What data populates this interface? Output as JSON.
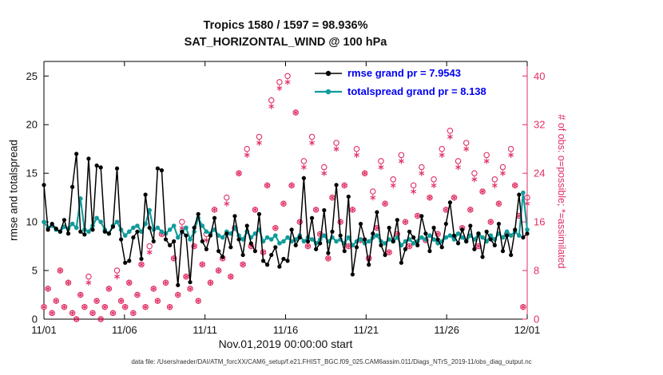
{
  "footer": {
    "data_file_note": "data file: /Users/raeder/DAI/ATM_forcXX/CAM6_setup/f.e21.FHIST_BGC.f09_025.CAM6assim.011/Diags_NTrS_2019-11/obs_diag_output.nc"
  },
  "chart_data": {
    "type": "line",
    "title": "Tropics 1580 / 1597 = 98.936%",
    "subtitle": "SAT_HORIZONTAL_WIND @ 100 hPa",
    "xlabel": "Nov.01,2019 00:00:00 start",
    "ylabel_left": "rmse and totalspread",
    "ylabel_right": "# of obs: o=possible; *=assimilated",
    "x_tick_labels": [
      "11/01",
      "11/06",
      "11/11",
      "11/16",
      "11/21",
      "11/26",
      "12/01"
    ],
    "x_tick_days": [
      0,
      5,
      10,
      15,
      20,
      25,
      30
    ],
    "x_days_total": 30,
    "ylim_left": [
      0,
      26.5
    ],
    "yticks_left": [
      0,
      5,
      10,
      15,
      20,
      25
    ],
    "ylim_right": [
      0,
      42.4
    ],
    "yticks_right": [
      0,
      8,
      16,
      24,
      32,
      40
    ],
    "grid": false,
    "legend_position": "upper-center-inside",
    "colors": {
      "rmse": "#000000",
      "totalspread": "#0f9b9b",
      "obs": "#e02f63",
      "legend_text": "#0000f0"
    },
    "legend": [
      {
        "series": "rmse",
        "label": "rmse grand pr = 7.9543"
      },
      {
        "series": "totalspread",
        "label": "totalspread grand pr = 8.138"
      }
    ],
    "stats": {
      "rmse_grand_prior": 7.9543,
      "totalspread_grand_prior": 8.138
    },
    "series": [
      {
        "name": "rmse",
        "axis": "left",
        "marker": "dot",
        "values": [
          13.8,
          9.2,
          9.8,
          9.3,
          9.0,
          10.2,
          8.8,
          13.6,
          17.0,
          9.0,
          8.7,
          16.5,
          9.2,
          15.8,
          15.6,
          9.0,
          8.8,
          9.5,
          15.5,
          8.2,
          5.8,
          6.0,
          8.4,
          9.0,
          6.2,
          12.8,
          9.4,
          8.0,
          15.5,
          15.3,
          8.2,
          7.6,
          8.0,
          3.5,
          9.0,
          8.6,
          3.8,
          9.4,
          10.8,
          8.0,
          7.2,
          8.6,
          10.4,
          7.0,
          6.4,
          8.8,
          7.4,
          10.6,
          8.2,
          6.6,
          9.6,
          7.8,
          7.0,
          10.8,
          6.0,
          5.6,
          6.6,
          7.4,
          5.4,
          6.2,
          6.0,
          9.2,
          7.6,
          8.4,
          14.5,
          8.0,
          10.4,
          7.2,
          7.8,
          11.2,
          6.8,
          9.0,
          13.8,
          8.6,
          7.0,
          12.6,
          4.6,
          7.4,
          9.8,
          8.2,
          5.6,
          8.8,
          11.0,
          7.6,
          6.6,
          9.4,
          8.0,
          10.2,
          5.8,
          7.2,
          9.0,
          8.4,
          7.6,
          10.6,
          8.8,
          7.0,
          9.4,
          8.2,
          7.4,
          9.8,
          12.0,
          8.6,
          7.8,
          9.2,
          8.0,
          9.6,
          7.2,
          8.8,
          6.4,
          9.0,
          8.2,
          7.6,
          9.8,
          7.0,
          8.6,
          6.6,
          9.2,
          12.8,
          8.4,
          8.8
        ]
      },
      {
        "name": "totalspread",
        "axis": "left",
        "marker": "dot",
        "values": [
          10.0,
          9.4,
          9.6,
          9.2,
          9.0,
          9.5,
          9.3,
          9.8,
          9.4,
          12.4,
          9.2,
          9.0,
          9.6,
          10.4,
          10.0,
          9.2,
          8.8,
          9.6,
          10.0,
          9.2,
          8.6,
          9.0,
          9.4,
          9.6,
          9.0,
          9.8,
          11.2,
          9.2,
          9.4,
          9.0,
          8.8,
          9.2,
          9.6,
          8.4,
          9.0,
          9.4,
          8.2,
          9.0,
          10.4,
          9.6,
          9.0,
          8.8,
          9.2,
          8.6,
          8.4,
          9.0,
          8.8,
          9.4,
          8.6,
          8.2,
          9.0,
          8.4,
          8.8,
          9.2,
          8.0,
          8.4,
          8.2,
          8.6,
          7.8,
          8.0,
          8.4,
          8.0,
          8.2,
          8.6,
          8.0,
          8.4,
          8.2,
          7.8,
          8.2,
          8.6,
          8.0,
          8.4,
          8.0,
          8.2,
          7.8,
          8.4,
          7.6,
          8.0,
          8.2,
          7.8,
          8.0,
          8.4,
          8.6,
          8.0,
          7.8,
          8.2,
          8.0,
          8.4,
          7.6,
          8.0,
          8.2,
          7.8,
          8.0,
          8.4,
          8.2,
          8.6,
          8.2,
          7.8,
          8.0,
          8.4,
          8.6,
          8.2,
          8.8,
          8.4,
          8.0,
          8.6,
          8.2,
          8.8,
          8.4,
          8.0,
          8.6,
          8.2,
          8.8,
          8.4,
          9.0,
          8.6,
          9.0,
          8.6,
          13.0,
          9.2
        ]
      },
      {
        "name": "possible",
        "axis": "right",
        "marker": "circle",
        "values": [
          2,
          5,
          1,
          3,
          8,
          2,
          6,
          1,
          0,
          4,
          2,
          7,
          1,
          3,
          0,
          2,
          5,
          1,
          8,
          3,
          2,
          6,
          1,
          4,
          9,
          2,
          12,
          5,
          3,
          14,
          6,
          2,
          10,
          4,
          16,
          7,
          5,
          12,
          3,
          9,
          14,
          6,
          18,
          8,
          10,
          20,
          7,
          15,
          24,
          9,
          28,
          12,
          18,
          30,
          11,
          22,
          36,
          15,
          39,
          19,
          40,
          22,
          34,
          16,
          26,
          12,
          30,
          18,
          14,
          25,
          10,
          20,
          29,
          16,
          22,
          12,
          18,
          28,
          13,
          24,
          10,
          21,
          15,
          26,
          19,
          11,
          23,
          14,
          27,
          16,
          12,
          22,
          17,
          25,
          13,
          20,
          23,
          14,
          28,
          18,
          31,
          20,
          26,
          15,
          29,
          18,
          24,
          12,
          21,
          27,
          16,
          23,
          19,
          25,
          14,
          28,
          22,
          17,
          2,
          20
        ]
      },
      {
        "name": "assimilated",
        "axis": "right",
        "marker": "asterisk",
        "values": [
          2,
          5,
          1,
          3,
          8,
          2,
          6,
          1,
          0,
          4,
          2,
          6,
          1,
          3,
          0,
          2,
          5,
          1,
          7,
          3,
          2,
          6,
          1,
          4,
          9,
          2,
          11,
          5,
          3,
          14,
          6,
          2,
          10,
          4,
          15,
          7,
          5,
          12,
          3,
          9,
          13,
          6,
          18,
          8,
          10,
          19,
          7,
          15,
          24,
          9,
          27,
          12,
          18,
          29,
          11,
          22,
          35,
          15,
          38,
          19,
          39,
          22,
          34,
          16,
          25,
          12,
          29,
          18,
          14,
          24,
          10,
          20,
          28,
          16,
          22,
          12,
          18,
          27,
          13,
          24,
          10,
          20,
          15,
          25,
          19,
          11,
          22,
          14,
          26,
          16,
          12,
          21,
          17,
          24,
          13,
          20,
          22,
          14,
          27,
          18,
          30,
          20,
          25,
          15,
          28,
          18,
          23,
          12,
          21,
          26,
          16,
          22,
          19,
          24,
          14,
          27,
          22,
          17,
          2,
          19
        ]
      }
    ]
  }
}
